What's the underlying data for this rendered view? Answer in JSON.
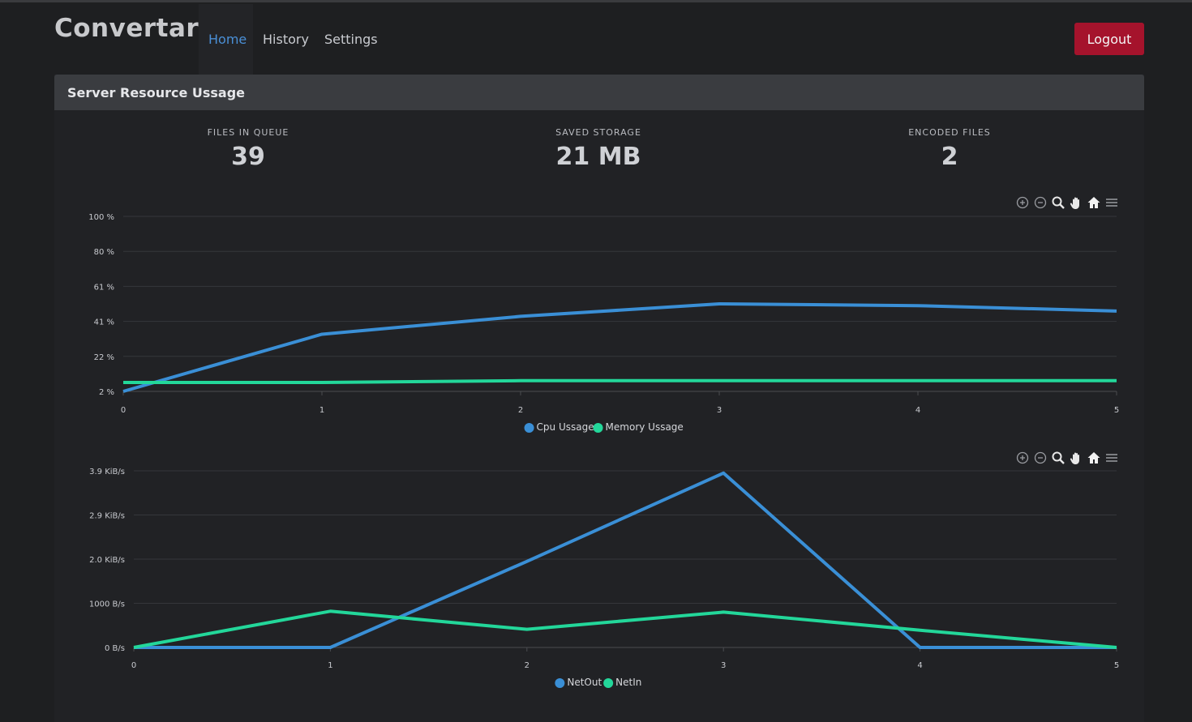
{
  "app": {
    "brand": "Convertarr",
    "nav": [
      {
        "label": "Home",
        "active": true
      },
      {
        "label": "History",
        "active": false
      },
      {
        "label": "Settings",
        "active": false
      }
    ],
    "logout_label": "Logout"
  },
  "card": {
    "title": "Server Resource Ussage"
  },
  "stats": [
    {
      "label": "FILES IN QUEUE",
      "value": "39"
    },
    {
      "label": "SAVED STORAGE",
      "value": "21 MB"
    },
    {
      "label": "ENCODED FILES",
      "value": "2"
    }
  ],
  "colors": {
    "series_blue": "#3a8fd6",
    "series_green": "#23d79a",
    "accent": "#4a8fd6",
    "logout": "#a5132c"
  },
  "toolbar_icons": [
    "zoom-in-icon",
    "zoom-out-icon",
    "magnifier-icon",
    "pan-hand-icon",
    "home-icon",
    "menu-icon"
  ],
  "chart_data": [
    {
      "type": "line",
      "x": [
        0,
        1,
        2,
        3,
        4,
        5
      ],
      "y_ticks": [
        "2 %",
        "22 %",
        "41 %",
        "61 %",
        "80 %",
        "100 %"
      ],
      "ylim": [
        2,
        100
      ],
      "series": [
        {
          "name": "Cpu Ussage",
          "values": [
            2,
            34,
            44,
            51,
            50,
            47
          ]
        },
        {
          "name": "Memory Ussage",
          "values": [
            7,
            7,
            8,
            8,
            8,
            8
          ]
        }
      ]
    },
    {
      "type": "line",
      "x": [
        0,
        1,
        2,
        3,
        4,
        5
      ],
      "y_ticks": [
        "0 B/s",
        "1000 B/s",
        "2.0 KiB/s",
        "2.9 KiB/s",
        "3.9 KiB/s"
      ],
      "ylim": [
        0,
        3.9
      ],
      "series": [
        {
          "name": "NetOut",
          "values": [
            0,
            0,
            1.9,
            3.85,
            0,
            0
          ]
        },
        {
          "name": "NetIn",
          "values": [
            0,
            0.8,
            0.4,
            0.78,
            0.38,
            0
          ]
        }
      ]
    }
  ]
}
